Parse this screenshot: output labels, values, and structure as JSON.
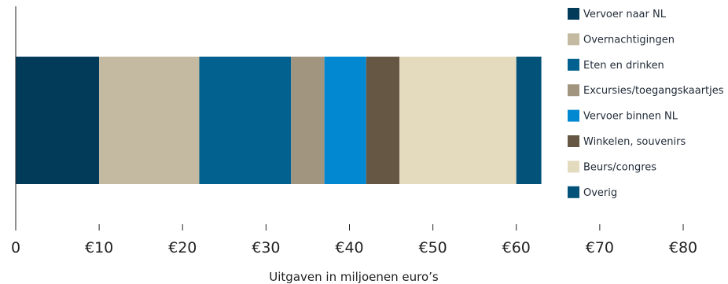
{
  "chart_data": {
    "type": "bar",
    "orientation": "horizontal",
    "stacked": true,
    "title": "",
    "xlabel": "Uitgaven in miljoenen euro’s",
    "ylabel": "",
    "xlim": [
      0,
      80
    ],
    "xticks": [
      {
        "value": 0,
        "label": "0"
      },
      {
        "value": 10,
        "label": "€10"
      },
      {
        "value": 20,
        "label": "€20"
      },
      {
        "value": 30,
        "label": "€30"
      },
      {
        "value": 40,
        "label": "€40"
      },
      {
        "value": 50,
        "label": "€50"
      },
      {
        "value": 60,
        "label": "€60"
      },
      {
        "value": 70,
        "label": "€70"
      },
      {
        "value": 80,
        "label": "€80"
      }
    ],
    "grid": false,
    "legend_position": "right",
    "series": [
      {
        "name": "Vervoer naar NL",
        "value": 10,
        "color": "#023a5a"
      },
      {
        "name": "Overnachtigingen",
        "value": 12,
        "color": "#c4b9a1"
      },
      {
        "name": "Eten en drinken",
        "value": 11,
        "color": "#02618f"
      },
      {
        "name": "Excursies/toegangskaartjes",
        "value": 4,
        "color": "#a19580"
      },
      {
        "name": "Vervoer binnen NL",
        "value": 5,
        "color": "#0288d1"
      },
      {
        "name": "Winkelen, souvenirs",
        "value": 4,
        "color": "#655744"
      },
      {
        "name": "Beurs/congres",
        "value": 14,
        "color": "#e4dbbf"
      },
      {
        "name": "Overig",
        "value": 3,
        "color": "#02527a"
      }
    ]
  }
}
